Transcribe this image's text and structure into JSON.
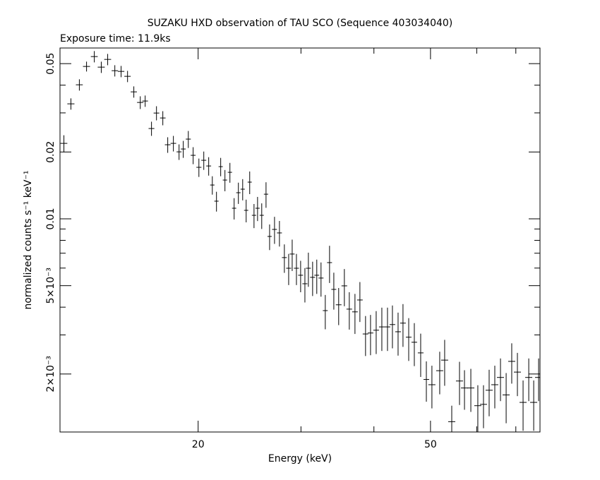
{
  "chart_data": {
    "type": "scatter",
    "title": "SUZAKU HXD observation of TAU SCO (Sequence 403034040)",
    "subtitle": "Exposure time: 11.9ks",
    "x_label": "Energy (keV)",
    "y_label": "normalized counts s⁻¹ keV⁻¹",
    "xscale": "log",
    "yscale": "log",
    "color": "#000000",
    "xlim": [
      11.6,
      77.0
    ],
    "ylim": [
      0.001096,
      0.0588
    ],
    "xticks": [
      20,
      50
    ],
    "xminorticks": [
      30,
      40,
      60,
      70
    ],
    "yticks": [
      0.05,
      0.02,
      0.01,
      {
        "value": 0.005,
        "label": "5×10⁻³"
      },
      {
        "value": 0.002,
        "label": "2×10⁻³"
      }
    ],
    "yminorticks": [
      0.04,
      0.03,
      0.009,
      0.008,
      0.007,
      0.006,
      0.004,
      0.003
    ],
    "x": [
      11.78,
      12.11,
      12.52,
      12.88,
      13.28,
      13.65,
      14.0,
      14.4,
      14.76,
      15.14,
      15.52,
      15.92,
      16.23,
      16.64,
      16.97,
      17.4,
      17.74,
      18.14,
      18.55,
      18.86,
      19.24,
      19.61,
      20.06,
      20.45,
      20.85,
      21.15,
      21.5,
      21.86,
      22.23,
      22.67,
      23.05,
      23.44,
      23.84,
      24.17,
      24.51,
      24.93,
      25.28,
      25.7,
      26.14,
      26.51,
      27.03,
      27.56,
      28.1,
      28.58,
      28.98,
      29.47,
      29.96,
      30.47,
      30.89,
      31.41,
      31.93,
      32.47,
      33.02,
      33.58,
      34.15,
      34.81,
      35.6,
      36.3,
      37.12,
      37.85,
      38.7,
      39.47,
      40.36,
      41.27,
      42.2,
      43.03,
      44.0,
      44.86,
      45.88,
      46.91,
      48.1,
      49.19,
      50.28,
      51.85,
      52.87,
      54.37,
      56.06,
      57.17,
      58.62,
      60.26,
      61.62,
      63.01,
      64.43,
      65.89,
      67.38,
      68.88,
      70.44,
      72.03,
      73.66,
      75.11,
      76.58
    ],
    "xerr": [
      0.16,
      0.17,
      0.17,
      0.18,
      0.18,
      0.19,
      0.19,
      0.18,
      0.19,
      0.19,
      0.19,
      0.2,
      0.18,
      0.19,
      0.19,
      0.19,
      0.2,
      0.2,
      0.18,
      0.18,
      0.19,
      0.19,
      0.2,
      0.2,
      0.2,
      0.18,
      0.18,
      0.18,
      0.19,
      0.19,
      0.19,
      0.2,
      0.2,
      0.2,
      0.2,
      0.21,
      0.21,
      0.21,
      0.22,
      0.22,
      0.26,
      0.27,
      0.27,
      0.28,
      0.28,
      0.29,
      0.29,
      0.3,
      0.3,
      0.31,
      0.31,
      0.32,
      0.32,
      0.33,
      0.33,
      0.39,
      0.4,
      0.4,
      0.41,
      0.42,
      0.43,
      0.44,
      0.45,
      0.46,
      0.47,
      0.48,
      0.49,
      0.5,
      0.51,
      0.52,
      0.54,
      0.55,
      0.7,
      0.72,
      0.74,
      0.76,
      0.78,
      0.8,
      0.82,
      0.84,
      0.86,
      0.88,
      0.9,
      0.92,
      0.94,
      0.96,
      0.98,
      1.0,
      1.03,
      1.05,
      1.07
    ],
    "values": [
      0.02187,
      0.03295,
      0.04015,
      0.04856,
      0.0538,
      0.04821,
      0.05224,
      0.04647,
      0.04613,
      0.04383,
      0.03731,
      0.03343,
      0.03393,
      0.02551,
      0.02995,
      0.02846,
      0.02156,
      0.02187,
      0.02003,
      0.02063,
      0.02286,
      0.01932,
      0.01706,
      0.01835,
      0.0173,
      0.0142,
      0.01201,
      0.01718,
      0.01495,
      0.0162,
      0.01116,
      0.01311,
      0.0136,
      0.01092,
      0.01463,
      0.01037,
      0.01116,
      0.01037,
      0.01291,
      0.00833,
      0.00896,
      0.00864,
      0.00669,
      0.00599,
      0.00694,
      0.00599,
      0.00557,
      0.0051,
      0.00599,
      0.00545,
      0.00557,
      0.00541,
      0.00386,
      0.00635,
      0.00481,
      0.0041,
      0.00499,
      0.00392,
      0.00381,
      0.00431,
      0.00303,
      0.00306,
      0.00315,
      0.00326,
      0.00326,
      0.00334,
      0.0031,
      0.00339,
      0.00293,
      0.00278,
      0.00249,
      0.00189,
      0.00179,
      0.00207,
      0.00231,
      0.00122,
      0.00186,
      0.00173,
      0.00173,
      0.00144,
      0.00146,
      0.00169,
      0.00179,
      0.00193,
      0.00161,
      0.00228,
      0.00204,
      0.00149,
      0.00193,
      0.00149,
      0.00193
    ],
    "yerr": [
      0.00192,
      0.00193,
      0.00235,
      0.00249,
      0.00315,
      0.00282,
      0.00306,
      0.00272,
      0.0027,
      0.00256,
      0.00218,
      0.0022,
      0.00199,
      0.00187,
      0.00219,
      0.00208,
      0.00174,
      0.00176,
      0.00161,
      0.00181,
      0.00201,
      0.0017,
      0.00162,
      0.00174,
      0.00165,
      0.00135,
      0.00123,
      0.00163,
      0.00164,
      0.00166,
      0.00123,
      0.00144,
      0.00149,
      0.00128,
      0.00171,
      0.00129,
      0.00139,
      0.00137,
      0.0017,
      0.0011,
      0.00125,
      0.00114,
      0.00098,
      0.00096,
      0.00112,
      0.00096,
      0.0009,
      0.0009,
      0.00105,
      0.00096,
      0.00098,
      0.00095,
      0.00068,
      0.00121,
      0.00091,
      0.00078,
      0.00095,
      0.00075,
      0.00078,
      0.00088,
      0.00062,
      0.00063,
      0.00069,
      0.00072,
      0.00072,
      0.00073,
      0.00068,
      0.00074,
      0.00064,
      0.00061,
      0.00055,
      0.00039,
      0.00039,
      0.00045,
      0.00054,
      0.00022,
      0.00041,
      0.00035,
      0.00038,
      0.00034,
      0.00032,
      0.0004,
      0.00039,
      0.00042,
      0.00041,
      0.00047,
      0.00045,
      0.00038,
      0.00042,
      0.00038,
      0.00042
    ]
  }
}
